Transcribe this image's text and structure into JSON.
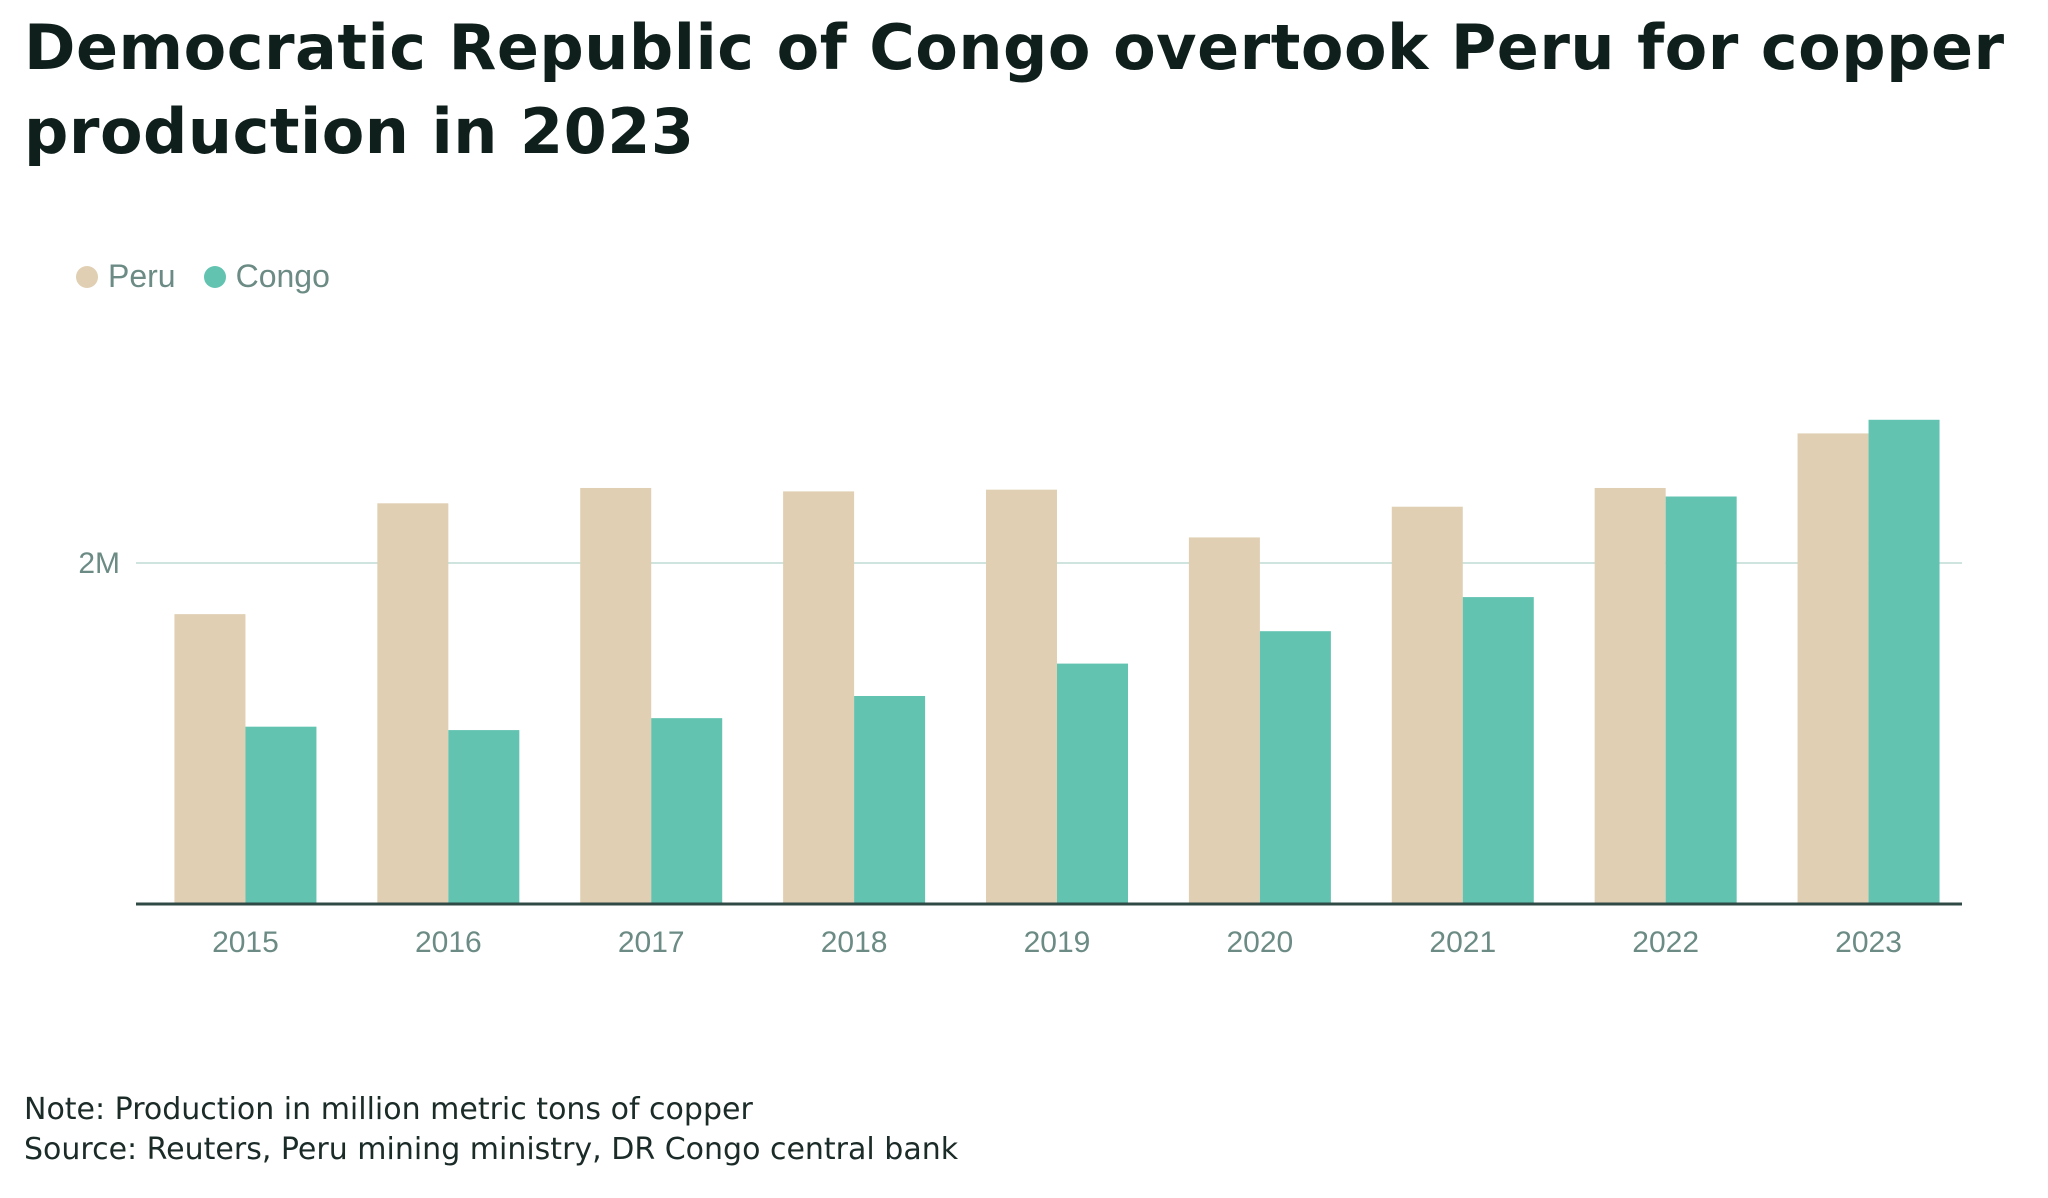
{
  "title": "Democratic Republic of Congo overtook Peru for copper production in 2023",
  "footer": {
    "note": "Note: Production in million metric tons of copper",
    "source": "Source: Reuters, Peru mining ministry, DR Congo central bank"
  },
  "colors": {
    "peru": "#e0cfb2",
    "congo": "#62c3b1",
    "grid": "#cfe3df",
    "axis": "#2f4a45"
  },
  "chart_data": {
    "type": "bar",
    "categories": [
      "2015",
      "2016",
      "2017",
      "2018",
      "2019",
      "2020",
      "2021",
      "2022",
      "2023"
    ],
    "series": [
      {
        "name": "Peru",
        "values": [
          1.7,
          2.35,
          2.44,
          2.42,
          2.43,
          2.15,
          2.33,
          2.44,
          2.76
        ]
      },
      {
        "name": "Congo",
        "values": [
          1.04,
          1.02,
          1.09,
          1.22,
          1.41,
          1.6,
          1.8,
          2.39,
          2.84
        ]
      }
    ],
    "yticks": [
      {
        "value": 2,
        "label": "2M"
      }
    ],
    "ylim": [
      0,
      3.0
    ],
    "legend": "top-left",
    "grid": true
  }
}
